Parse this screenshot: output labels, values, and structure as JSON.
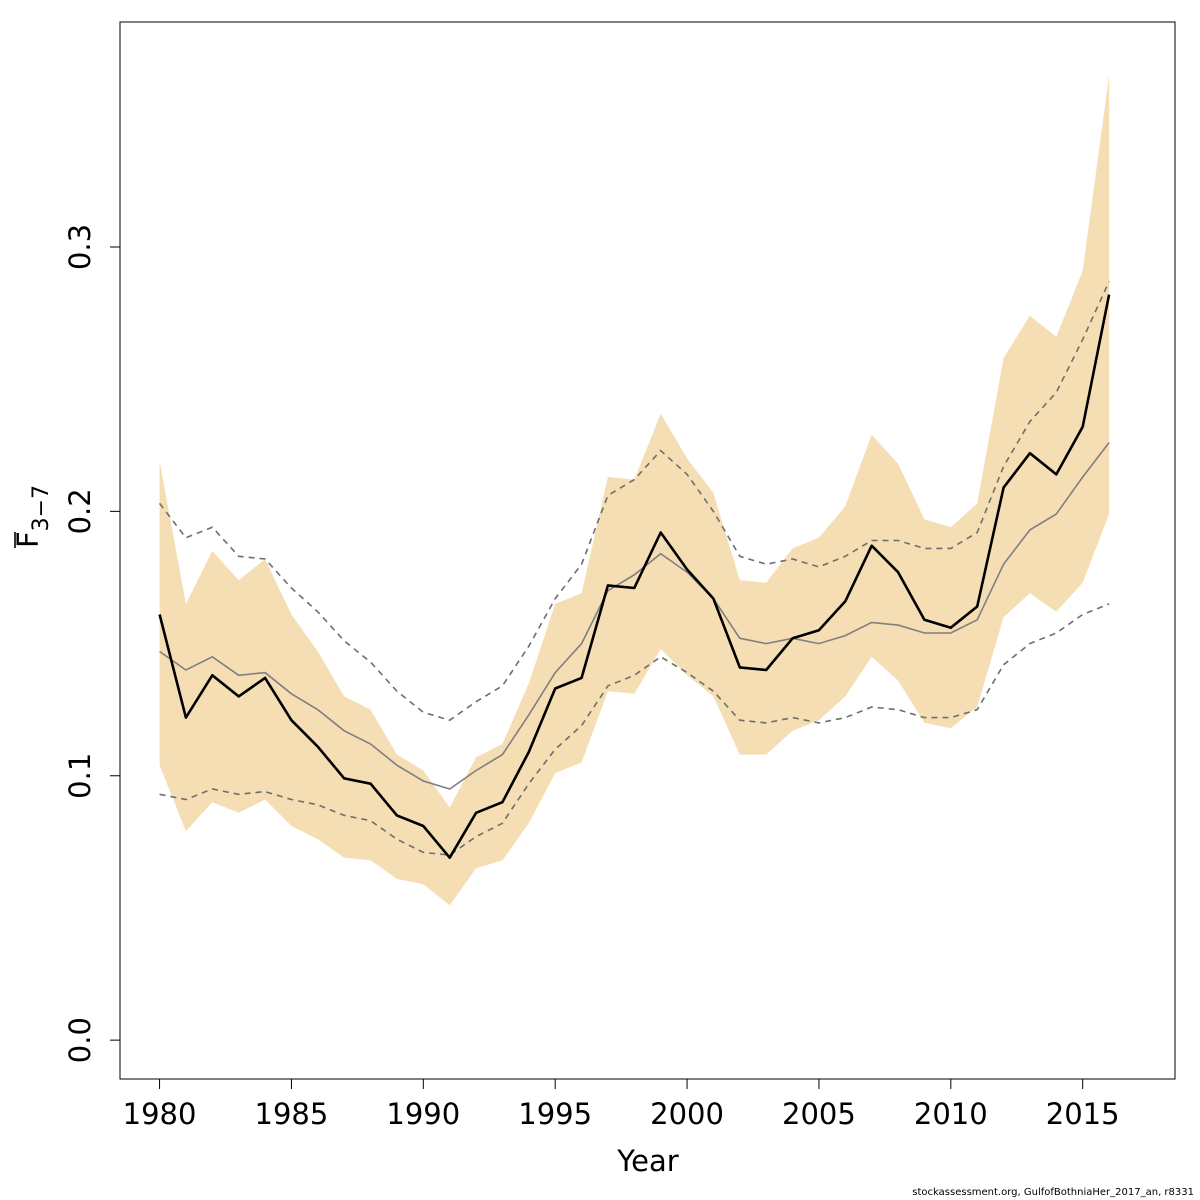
{
  "chart_data": {
    "type": "line",
    "xlabel": "Year",
    "ylabel": {
      "main": "F",
      "sub": "3−7"
    },
    "xlim": [
      1978.5,
      2018.5
    ],
    "ylim": [
      -0.0147,
      0.3851
    ],
    "x_ticks": [
      1980,
      1985,
      1990,
      1995,
      2000,
      2005,
      2010,
      2015
    ],
    "y_ticks": [
      0.0,
      0.1,
      0.2,
      0.3
    ],
    "x_tick_labels": [
      "1980",
      "1985",
      "1990",
      "1995",
      "2000",
      "2005",
      "2010",
      "2015"
    ],
    "y_tick_labels": [
      "0.0",
      "0.1",
      "0.2",
      "0.3"
    ],
    "x": [
      1980,
      1981,
      1982,
      1983,
      1984,
      1985,
      1986,
      1987,
      1988,
      1989,
      1990,
      1991,
      1992,
      1993,
      1994,
      1995,
      1996,
      1997,
      1998,
      1999,
      2000,
      2001,
      2002,
      2003,
      2004,
      2005,
      2006,
      2007,
      2008,
      2009,
      2010,
      2011,
      2012,
      2013,
      2014,
      2015,
      2016
    ],
    "band": {
      "color": "#f5deb3",
      "upper": [
        0.219,
        0.165,
        0.185,
        0.174,
        0.182,
        0.161,
        0.147,
        0.13,
        0.125,
        0.108,
        0.102,
        0.088,
        0.107,
        0.112,
        0.135,
        0.165,
        0.169,
        0.213,
        0.212,
        0.237,
        0.22,
        0.207,
        0.174,
        0.173,
        0.186,
        0.19,
        0.202,
        0.229,
        0.218,
        0.197,
        0.194,
        0.203,
        0.258,
        0.274,
        0.266,
        0.291,
        0.365
      ],
      "lower": [
        0.104,
        0.079,
        0.09,
        0.086,
        0.091,
        0.081,
        0.076,
        0.069,
        0.068,
        0.061,
        0.059,
        0.051,
        0.065,
        0.068,
        0.082,
        0.101,
        0.105,
        0.132,
        0.131,
        0.148,
        0.138,
        0.13,
        0.108,
        0.108,
        0.117,
        0.121,
        0.13,
        0.145,
        0.136,
        0.12,
        0.118,
        0.126,
        0.16,
        0.169,
        0.162,
        0.173,
        0.199
      ]
    },
    "series": [
      {
        "role": "estimate",
        "color": "#000000",
        "style": "solid",
        "values": [
          0.161,
          0.122,
          0.138,
          0.13,
          0.137,
          0.121,
          0.111,
          0.099,
          0.097,
          0.085,
          0.081,
          0.069,
          0.086,
          0.09,
          0.109,
          0.133,
          0.137,
          0.172,
          0.171,
          0.192,
          0.178,
          0.167,
          0.141,
          0.14,
          0.152,
          0.155,
          0.166,
          0.187,
          0.177,
          0.159,
          0.156,
          0.164,
          0.209,
          0.222,
          0.214,
          0.232,
          0.282
        ]
      },
      {
        "role": "median",
        "color": "#7f7f7f",
        "style": "solid",
        "values": [
          0.147,
          0.14,
          0.145,
          0.138,
          0.139,
          0.131,
          0.125,
          0.117,
          0.112,
          0.104,
          0.098,
          0.095,
          0.102,
          0.108,
          0.123,
          0.139,
          0.15,
          0.17,
          0.176,
          0.184,
          0.177,
          0.167,
          0.152,
          0.15,
          0.152,
          0.15,
          0.153,
          0.158,
          0.157,
          0.154,
          0.154,
          0.159,
          0.18,
          0.193,
          0.199,
          0.213,
          0.226
        ]
      },
      {
        "role": "upper-quantile",
        "color": "#6e6e6e",
        "style": "dashed",
        "values": [
          0.203,
          0.19,
          0.194,
          0.183,
          0.182,
          0.171,
          0.162,
          0.151,
          0.143,
          0.132,
          0.124,
          0.121,
          0.128,
          0.134,
          0.149,
          0.167,
          0.18,
          0.206,
          0.212,
          0.223,
          0.214,
          0.2,
          0.183,
          0.18,
          0.182,
          0.179,
          0.183,
          0.189,
          0.189,
          0.186,
          0.186,
          0.192,
          0.217,
          0.234,
          0.245,
          0.265,
          0.287
        ]
      },
      {
        "role": "lower-quantile",
        "color": "#6e6e6e",
        "style": "dashed",
        "values": [
          0.093,
          0.091,
          0.095,
          0.093,
          0.094,
          0.091,
          0.089,
          0.085,
          0.083,
          0.076,
          0.071,
          0.07,
          0.077,
          0.082,
          0.097,
          0.11,
          0.119,
          0.134,
          0.138,
          0.145,
          0.139,
          0.132,
          0.121,
          0.12,
          0.122,
          0.12,
          0.122,
          0.126,
          0.125,
          0.122,
          0.122,
          0.125,
          0.142,
          0.15,
          0.154,
          0.161,
          0.165
        ]
      }
    ]
  },
  "footer": {
    "text": "stockassessment.org, GulfofBothniaHer_2017_an, r8331"
  }
}
